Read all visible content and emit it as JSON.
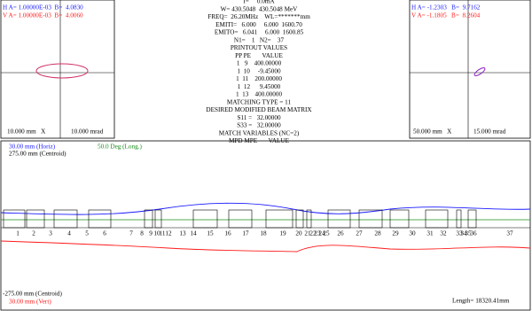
{
  "left_panel": {
    "h_line": "H A= 1.00000E-03  B=  4.0830",
    "v_line": "V A= 1.00000E-03  B=  4.0060",
    "x_scale": "10.000 mm   X",
    "y_scale": "10.000 mrad"
  },
  "center_panel": {
    "lines": [
      "I=     0.0mA",
      "W= 430.5048  430.5048 MeV",
      "FREQ=  26.20MHz    WL=*******mm",
      "EMITI=   6.000     6.000  1600.70",
      "EMITO=   6.041     6.000  1600.85",
      "N1=    1   N2=    37",
      "PRINTOUT VALUES",
      "PP PE       VALUE",
      "1   9    400.00000",
      "1  10     -9.45000",
      "1  11    200.00000",
      "1  12      9.45000",
      "1  13    400.00000",
      "MATCHING TYPE = 11",
      "DESIRED MODIFIED BEAM MATRIX",
      "S11 =   32.00000",
      "S33 =   32.00000",
      "MATCH VARIABLES (NC=2)",
      "MPD MPE       VALUE"
    ]
  },
  "right_panel": {
    "h_line": "H A= -1.2303   B=  9.7162",
    "v_line": "V A= -1.1805   B=  8.2604",
    "x_scale": "50.000 mm   X",
    "y_scale": "15.000 mrad"
  },
  "profile": {
    "horiz_scale": "30.00 mm (Horiz)",
    "long_scale": "50.0 Deg (Long.)",
    "centroid_top": "275.00 mm (Centroid)",
    "centroid_bottom": "-275.00 mm (Centroid)",
    "vert_scale": "30.00 mm (Vert)",
    "length": "Length= 18320.41mm",
    "elements": [
      "1",
      "2",
      "3",
      "4",
      "5",
      "6",
      "7",
      "8",
      "9",
      "10",
      "11",
      "12",
      "13",
      "14",
      "15",
      "16",
      "17",
      "18",
      "19",
      "20",
      "21",
      "22",
      "23",
      "24",
      "25",
      "26",
      "27",
      "28",
      "29",
      "30",
      "31",
      "32",
      "33",
      "34",
      "35",
      "36",
      "37"
    ]
  }
}
